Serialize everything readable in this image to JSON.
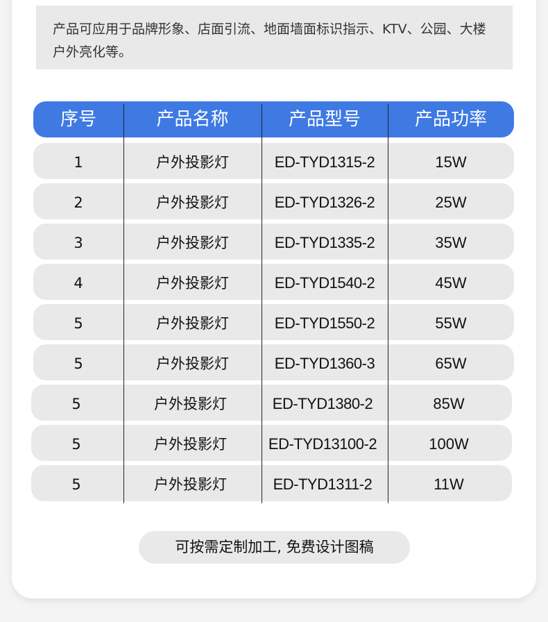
{
  "intro_text": "产品可应用于品牌形象、店面引流、地面墙面标识指示、KTV、公园、大楼户外亮化等。",
  "table": {
    "headers": [
      "序号",
      "产品名称",
      "产品型号",
      "产品功率"
    ],
    "rows": [
      [
        "1",
        "户外投影灯",
        "ED-TYD1315-2",
        "15W"
      ],
      [
        "2",
        "户外投影灯",
        "ED-TYD1326-2",
        "25W"
      ],
      [
        "3",
        "户外投影灯",
        "ED-TYD1335-2",
        "35W"
      ],
      [
        "4",
        "户外投影灯",
        "ED-TYD1540-2",
        "45W"
      ],
      [
        "5",
        "户外投影灯",
        "ED-TYD1550-2",
        "55W"
      ],
      [
        "5",
        "户外投影灯",
        "ED-TYD1360-3",
        "65W"
      ],
      [
        "5",
        "户外投影灯",
        "ED-TYD1380-2",
        "85W"
      ],
      [
        "5",
        "户外投影灯",
        "ED-TYD13100-2",
        "100W"
      ],
      [
        "5",
        "户外投影灯",
        "ED-TYD1311-2",
        "11W"
      ]
    ]
  },
  "cta_label": "可按需定制加工, 免费设计图稿",
  "colors": {
    "header_bg": "#3f7ae3",
    "row_bg": "#e9e9e9",
    "page_bg": "#f4f4f4"
  }
}
